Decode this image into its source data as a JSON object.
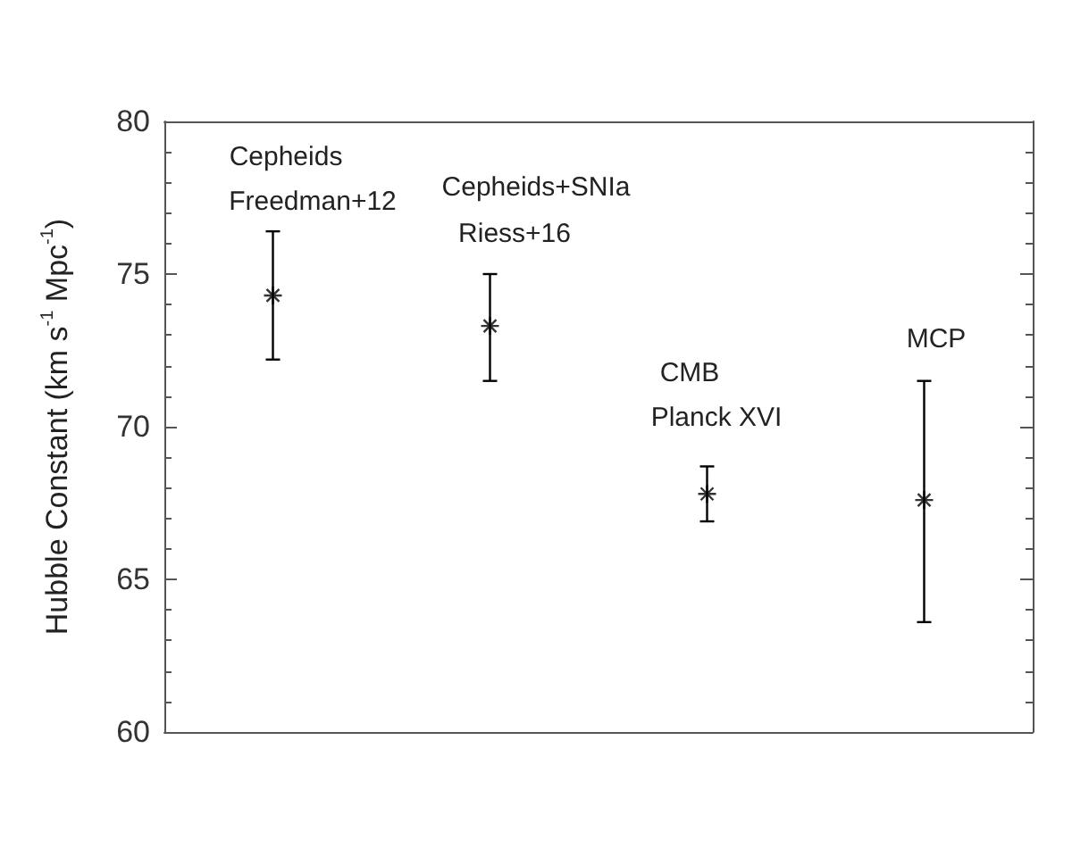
{
  "chart_data": {
    "type": "scatter",
    "ylabel": "Hubble Constant (km s$^{-1}$ Mpc$^{-1}$)",
    "categories": [
      null,
      null,
      null,
      null
    ],
    "series": [
      {
        "color": "#000000",
        "values": [
          74.3,
          73.3,
          67.8,
          67.6
        ],
        "errors": [
          [
            72.2,
            76.4
          ],
          [
            71.5,
            75.0
          ],
          [
            66.9,
            68.7
          ],
          [
            63.6,
            71.5
          ]
        ]
      }
    ],
    "ylim": [
      60,
      80
    ],
    "yticks": [
      60,
      65,
      70,
      75,
      80
    ],
    "marker": "cross",
    "annotations": [
      "Cepheids",
      "Freedman+12",
      "Cepheids+SNIa",
      "Riess+16",
      "CMB",
      "Planck XVI",
      "MCP"
    ]
  }
}
